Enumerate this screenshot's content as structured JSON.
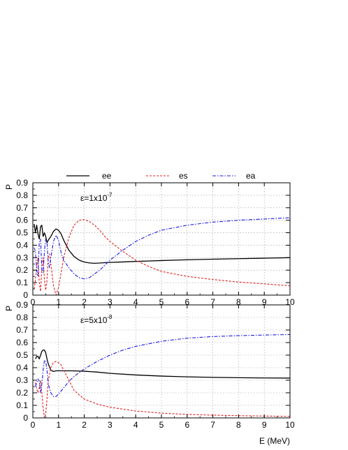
{
  "colors": {
    "ee": "#000000",
    "es": "#e02020",
    "ea": "#1a1ae0"
  },
  "chart_data": [
    {
      "type": "line",
      "panel": "top",
      "ylabel": "P",
      "xlabel": "",
      "xlim": [
        0,
        10
      ],
      "ylim": [
        0,
        0.9
      ],
      "grid": true,
      "legend_position": "top",
      "annotation": {
        "prefix": "ε=1x10",
        "exponent": "-7"
      },
      "x_ticks": [
        "0",
        "1",
        "2",
        "3",
        "4",
        "5",
        "6",
        "7",
        "8",
        "9",
        "10"
      ],
      "y_ticks": [
        "0",
        "0.1",
        "0.2",
        "0.3",
        "0.4",
        "0.5",
        "0.6",
        "0.7",
        "0.8",
        "0.9"
      ],
      "series": [
        {
          "name": "ee",
          "style": "solid",
          "x": [
            0.05,
            0.1,
            0.15,
            0.2,
            0.25,
            0.3,
            0.35,
            0.4,
            0.45,
            0.5,
            0.55,
            0.6,
            0.7,
            0.8,
            0.9,
            1.0,
            1.1,
            1.2,
            1.4,
            1.6,
            1.8,
            2.0,
            2.2,
            2.4,
            2.6,
            2.8,
            3.0,
            3.5,
            4.0,
            4.5,
            5.0,
            6.0,
            7.0,
            8.0,
            9.0,
            10.0
          ],
          "y": [
            0.57,
            0.5,
            0.56,
            0.49,
            0.45,
            0.55,
            0.56,
            0.47,
            0.5,
            0.47,
            0.42,
            0.44,
            0.47,
            0.51,
            0.53,
            0.52,
            0.49,
            0.44,
            0.36,
            0.31,
            0.28,
            0.265,
            0.258,
            0.255,
            0.257,
            0.26,
            0.262,
            0.266,
            0.27,
            0.273,
            0.277,
            0.283,
            0.288,
            0.292,
            0.296,
            0.3
          ]
        },
        {
          "name": "es",
          "style": "dashed",
          "x": [
            0.05,
            0.1,
            0.15,
            0.2,
            0.25,
            0.3,
            0.35,
            0.4,
            0.45,
            0.5,
            0.55,
            0.6,
            0.65,
            0.7,
            0.8,
            0.9,
            1.0,
            1.1,
            1.2,
            1.4,
            1.6,
            1.8,
            2.0,
            2.2,
            2.4,
            2.6,
            2.8,
            3.0,
            3.5,
            4.0,
            4.5,
            5.0,
            6.0,
            7.0,
            8.0,
            9.0,
            10.0
          ],
          "y": [
            0.05,
            0.12,
            0.22,
            0.3,
            0.1,
            0.03,
            0.22,
            0.3,
            0.12,
            0.04,
            0.12,
            0.3,
            0.33,
            0.25,
            0.08,
            0.0,
            0.06,
            0.18,
            0.3,
            0.46,
            0.56,
            0.6,
            0.605,
            0.59,
            0.56,
            0.52,
            0.47,
            0.43,
            0.35,
            0.28,
            0.23,
            0.19,
            0.15,
            0.125,
            0.105,
            0.09,
            0.075
          ]
        },
        {
          "name": "ea",
          "style": "dashdot",
          "x": [
            0.05,
            0.1,
            0.15,
            0.2,
            0.25,
            0.3,
            0.35,
            0.4,
            0.45,
            0.5,
            0.55,
            0.6,
            0.65,
            0.7,
            0.8,
            0.9,
            1.0,
            1.1,
            1.2,
            1.4,
            1.6,
            1.8,
            2.0,
            2.2,
            2.4,
            2.6,
            2.8,
            3.0,
            3.5,
            4.0,
            4.5,
            5.0,
            6.0,
            7.0,
            8.0,
            9.0,
            10.0
          ],
          "y": [
            0.38,
            0.35,
            0.2,
            0.15,
            0.42,
            0.45,
            0.2,
            0.18,
            0.35,
            0.45,
            0.42,
            0.26,
            0.22,
            0.3,
            0.43,
            0.48,
            0.44,
            0.34,
            0.28,
            0.22,
            0.17,
            0.14,
            0.13,
            0.14,
            0.17,
            0.2,
            0.24,
            0.28,
            0.36,
            0.43,
            0.48,
            0.52,
            0.56,
            0.585,
            0.6,
            0.61,
            0.62
          ]
        }
      ]
    },
    {
      "type": "line",
      "panel": "bottom",
      "ylabel": "P",
      "xlabel": "E (MeV)",
      "xlim": [
        0,
        10
      ],
      "ylim": [
        0,
        0.9
      ],
      "grid": true,
      "annotation": {
        "prefix": "ε=5x10",
        "exponent": "-8"
      },
      "x_ticks": [
        "0",
        "1",
        "2",
        "3",
        "4",
        "5",
        "6",
        "7",
        "8",
        "9",
        "10"
      ],
      "y_ticks": [
        "0",
        "0.1",
        "0.2",
        "0.3",
        "0.4",
        "0.5",
        "0.6",
        "0.7",
        "0.8",
        "0.9"
      ],
      "series": [
        {
          "name": "ee",
          "style": "solid",
          "x": [
            0.1,
            0.15,
            0.2,
            0.25,
            0.3,
            0.35,
            0.4,
            0.45,
            0.5,
            0.55,
            0.6,
            0.7,
            0.8,
            0.9,
            1.0,
            1.2,
            1.5,
            2.0,
            2.5,
            3.0,
            4.0,
            5.0,
            6.0,
            7.0,
            8.0,
            9.0,
            10.0
          ],
          "y": [
            0.47,
            0.49,
            0.49,
            0.47,
            0.5,
            0.53,
            0.54,
            0.54,
            0.52,
            0.47,
            0.43,
            0.38,
            0.37,
            0.375,
            0.375,
            0.375,
            0.375,
            0.372,
            0.365,
            0.355,
            0.342,
            0.333,
            0.327,
            0.323,
            0.32,
            0.318,
            0.317
          ]
        },
        {
          "name": "es",
          "style": "dashed",
          "x": [
            0.1,
            0.15,
            0.2,
            0.25,
            0.3,
            0.35,
            0.4,
            0.45,
            0.5,
            0.55,
            0.6,
            0.7,
            0.8,
            0.9,
            1.0,
            1.1,
            1.2,
            1.4,
            1.6,
            2.0,
            2.5,
            3.0,
            4.0,
            5.0,
            6.0,
            7.0,
            8.0,
            9.0,
            10.0
          ],
          "y": [
            0.28,
            0.23,
            0.2,
            0.24,
            0.3,
            0.2,
            0.08,
            0.0,
            0.03,
            0.15,
            0.3,
            0.4,
            0.44,
            0.45,
            0.44,
            0.42,
            0.38,
            0.3,
            0.22,
            0.15,
            0.11,
            0.085,
            0.055,
            0.038,
            0.028,
            0.022,
            0.018,
            0.015,
            0.012
          ]
        },
        {
          "name": "ea",
          "style": "dashdot",
          "x": [
            0.1,
            0.15,
            0.2,
            0.25,
            0.3,
            0.35,
            0.4,
            0.45,
            0.5,
            0.55,
            0.6,
            0.7,
            0.8,
            0.9,
            1.0,
            1.2,
            1.4,
            1.6,
            1.8,
            2.0,
            2.5,
            3.0,
            3.5,
            4.0,
            5.0,
            6.0,
            7.0,
            8.0,
            9.0,
            10.0
          ],
          "y": [
            0.25,
            0.28,
            0.31,
            0.29,
            0.2,
            0.27,
            0.38,
            0.46,
            0.45,
            0.38,
            0.27,
            0.2,
            0.17,
            0.17,
            0.19,
            0.24,
            0.29,
            0.33,
            0.36,
            0.39,
            0.45,
            0.5,
            0.54,
            0.57,
            0.61,
            0.635,
            0.648,
            0.655,
            0.66,
            0.664
          ]
        }
      ]
    }
  ]
}
